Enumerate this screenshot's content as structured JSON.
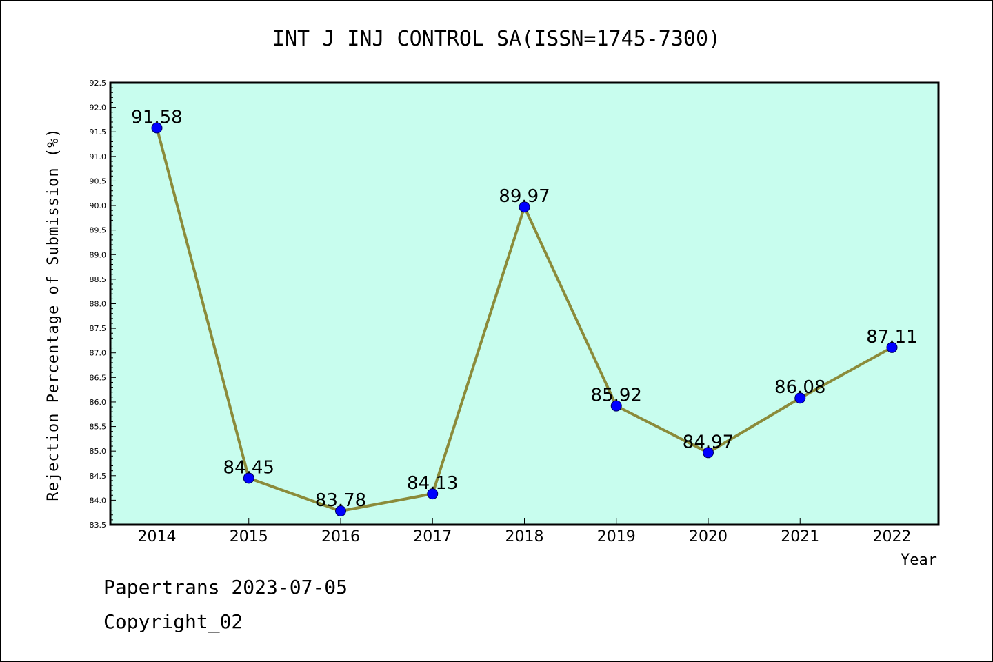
{
  "chart_data": {
    "type": "line",
    "title": "INT J INJ CONTROL SA(ISSN=1745-7300)",
    "xlabel": "Year",
    "ylabel": "Rejection Percentage of Submission (%)",
    "categories": [
      "2014",
      "2015",
      "2016",
      "2017",
      "2018",
      "2019",
      "2020",
      "2021",
      "2022"
    ],
    "series": [
      {
        "values": [
          91.58,
          84.45,
          83.78,
          84.13,
          89.97,
          85.92,
          84.97,
          86.08,
          87.11
        ]
      }
    ],
    "data_labels": [
      "91.58",
      "84.45",
      "83.78",
      "84.13",
      "89.97",
      "85.92",
      "84.97",
      "86.08",
      "87.11"
    ],
    "ylim": [
      83.5,
      92.5
    ],
    "yticks": [
      "83.5",
      "84.0",
      "84.5",
      "85.0",
      "85.5",
      "86.0",
      "86.5",
      "87.0",
      "87.5",
      "88.0",
      "88.5",
      "89.0",
      "89.5",
      "90.0",
      "90.5",
      "91.0",
      "91.5",
      "92.0",
      "92.5"
    ],
    "grid": false,
    "legend": "none",
    "colors": {
      "plot_background": "#c8fdee",
      "line": "#8b8b3a",
      "marker": "#0000ff"
    }
  },
  "footer": {
    "line1": "Papertrans 2023-07-05",
    "line2": "Copyright_02"
  }
}
